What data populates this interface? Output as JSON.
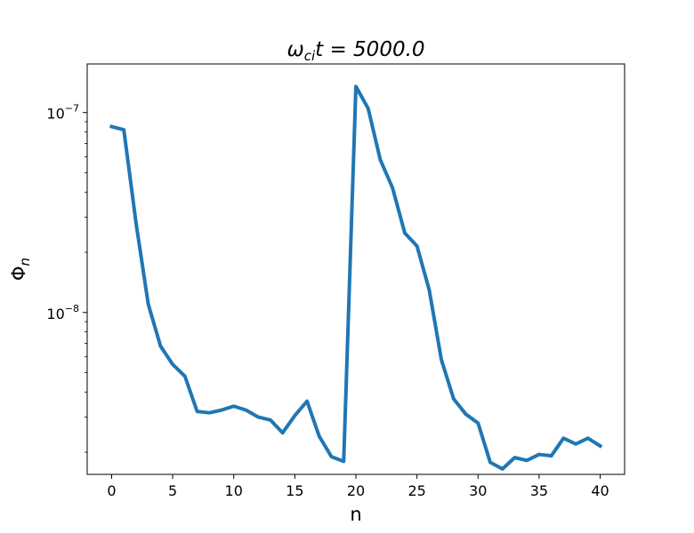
{
  "chart_data": {
    "type": "line",
    "title": {
      "symbol": "ω",
      "subscript": "ci",
      "rest": "t = 5000.0"
    },
    "xlabel": "n",
    "ylabel": {
      "symbol": "Φ",
      "subscript": "n"
    },
    "yscale": "log",
    "xlim": [
      -2,
      42
    ],
    "ylim": [
      1.55e-09,
      1.75e-07
    ],
    "grid": false,
    "x_ticks": [
      {
        "value": 0,
        "label": "0"
      },
      {
        "value": 5,
        "label": "5"
      },
      {
        "value": 10,
        "label": "10"
      },
      {
        "value": 15,
        "label": "15"
      },
      {
        "value": 20,
        "label": "20"
      },
      {
        "value": 25,
        "label": "25"
      },
      {
        "value": 30,
        "label": "30"
      },
      {
        "value": 35,
        "label": "35"
      },
      {
        "value": 40,
        "label": "40"
      }
    ],
    "y_major_ticks": [
      {
        "value": 1e-08,
        "base": "10",
        "exponent": "−8"
      },
      {
        "value": 1e-07,
        "base": "10",
        "exponent": "−7"
      }
    ],
    "y_minor_ticks": [
      2e-09,
      3e-09,
      4e-09,
      5e-09,
      6e-09,
      7e-09,
      8e-09,
      9e-09,
      2e-08,
      3e-08,
      4e-08,
      5e-08,
      6e-08,
      7e-08,
      8e-08,
      9e-08
    ],
    "colors": {
      "line": "#1f77b4"
    },
    "series": [
      {
        "x": [
          0,
          1,
          2,
          3,
          4,
          5,
          6,
          7,
          8,
          9,
          10,
          11,
          12,
          13,
          14,
          15,
          16,
          17,
          18,
          19,
          20,
          21,
          22,
          23,
          24,
          25,
          26,
          27,
          28,
          29,
          30,
          31,
          32,
          33,
          34,
          35,
          36,
          37,
          38,
          39,
          40
        ],
        "values": [
          8.5e-08,
          8.2e-08,
          2.8e-08,
          1.1e-08,
          6.8e-09,
          5.5e-09,
          4.8e-09,
          3.2e-09,
          3.15e-09,
          3.25e-09,
          3.4e-09,
          3.25e-09,
          3e-09,
          2.9e-09,
          2.5e-09,
          3.05e-09,
          3.6e-09,
          2.4e-09,
          1.9e-09,
          1.8e-09,
          1.35e-07,
          1.05e-07,
          5.8e-08,
          4.2e-08,
          2.5e-08,
          2.15e-08,
          1.3e-08,
          5.8e-09,
          3.7e-09,
          3.1e-09,
          2.8e-09,
          1.78e-09,
          1.65e-09,
          1.88e-09,
          1.82e-09,
          1.95e-09,
          1.92e-09,
          2.35e-09,
          2.2e-09,
          2.35e-09,
          2.15e-09
        ]
      }
    ]
  }
}
